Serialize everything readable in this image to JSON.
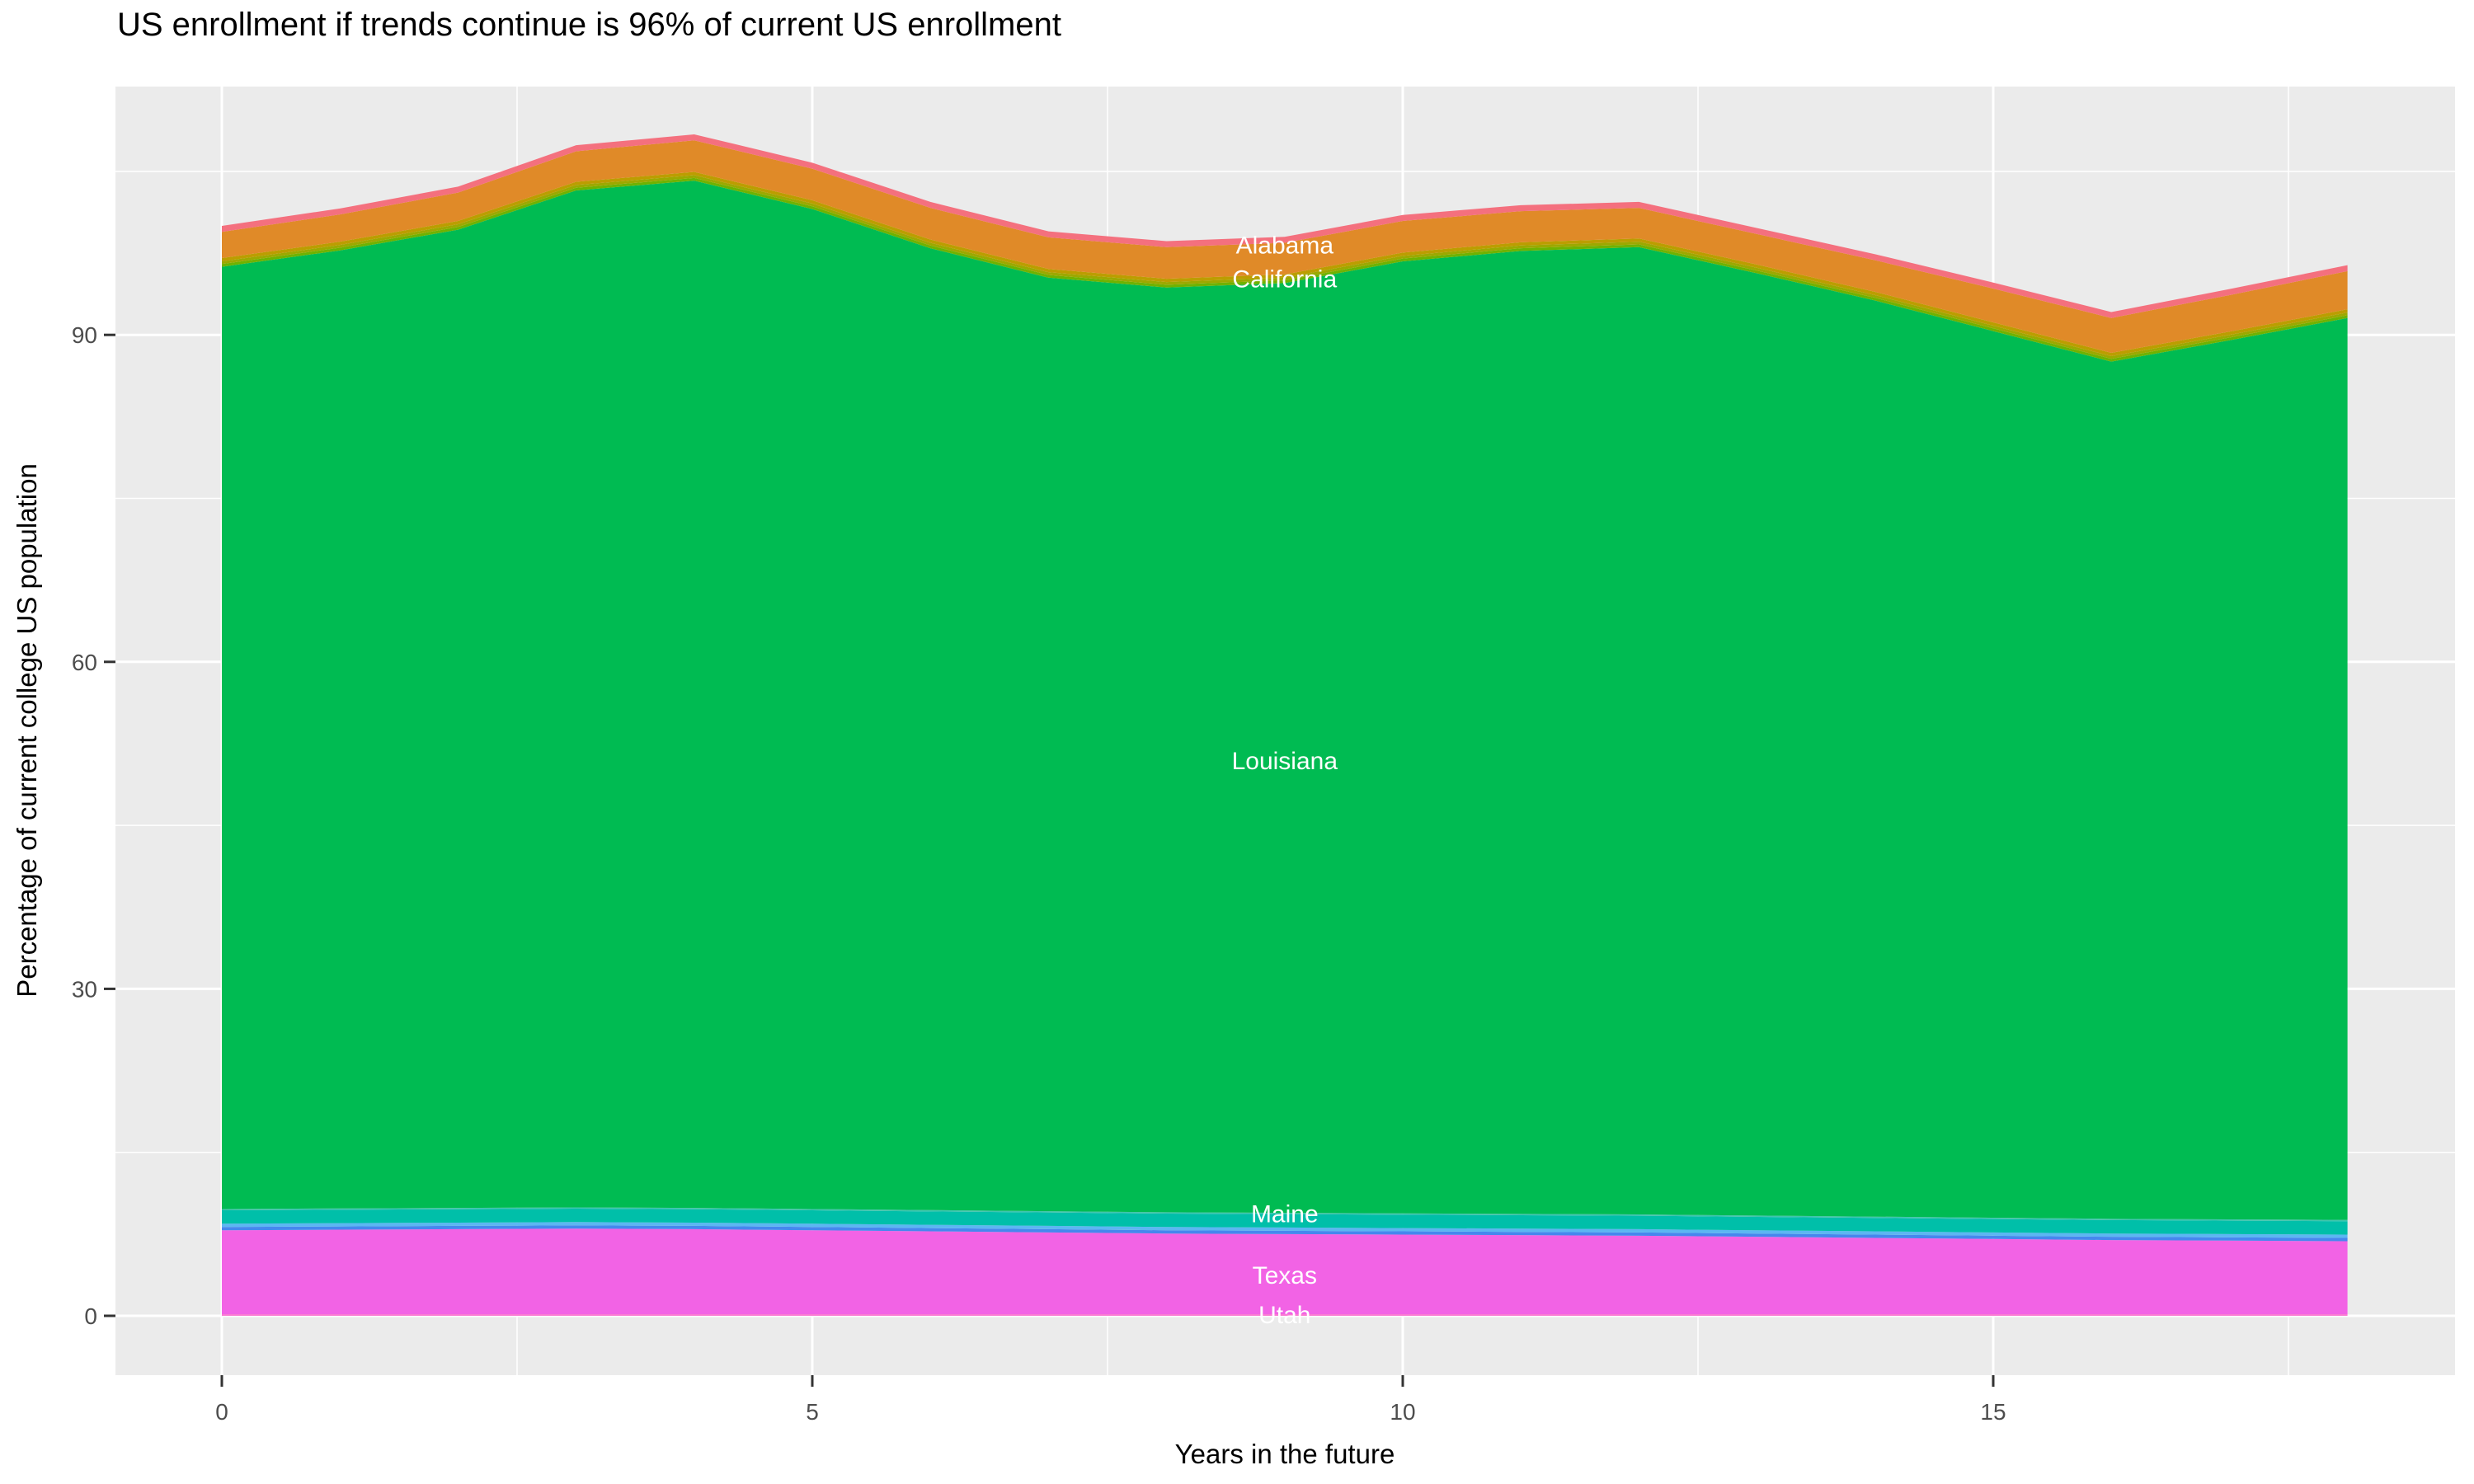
{
  "title": "US enrollment if trends continue is 96% of current US enrollment",
  "axes": {
    "x_label": "Years in the future",
    "y_label": "Percentage of current college US population",
    "x_ticks": [
      0,
      5,
      10,
      15
    ],
    "x_minor": [
      2.5,
      7.5,
      12.5,
      17.5
    ],
    "y_ticks": [
      0,
      30,
      60,
      90
    ],
    "y_minor": [
      15,
      45,
      75,
      105
    ],
    "x_range_shown": [
      -0.9,
      18.9
    ],
    "y_range_shown": [
      -5.5,
      113.0
    ]
  },
  "style_colors": {
    "background": "#FFFFFF",
    "panel_background": "#EBEBEB",
    "gridline": "#FFFFFF",
    "tick_mark": "#333333",
    "tick_label": "#4D4D4D",
    "title_text": "#000000",
    "area_label_text": "#FFFFFF"
  },
  "chart_data": {
    "type": "area",
    "stacked": true,
    "title": "US enrollment if trends continue is 96% of current US enrollment",
    "xlabel": "Years in the future",
    "ylabel": "Percentage of current college US population",
    "xlim": [
      0,
      18
    ],
    "ylim": [
      0,
      110
    ],
    "grid": true,
    "legend_position": "none",
    "x": [
      0,
      1,
      2,
      3,
      4,
      5,
      6,
      7,
      8,
      9,
      10,
      11,
      12,
      13,
      14,
      15,
      16,
      17,
      18
    ],
    "total_stack": [
      100.0,
      101.6,
      103.6,
      107.4,
      108.4,
      105.8,
      102.2,
      99.5,
      98.6,
      99.0,
      101.0,
      101.9,
      102.2,
      99.8,
      97.4,
      94.8,
      92.1,
      94.2,
      96.4
    ],
    "series": [
      {
        "name": "other-states-bottom-sliver",
        "display_label": "",
        "color": "#F97BD2",
        "values": 0.15
      },
      {
        "name": "Texas",
        "display_label": "Texas",
        "color": "#F263E5",
        "values": [
          7.7,
          7.75,
          7.8,
          7.85,
          7.8,
          7.7,
          7.6,
          7.5,
          7.4,
          7.35,
          7.3,
          7.25,
          7.2,
          7.1,
          7.0,
          6.9,
          6.8,
          6.75,
          6.7
        ]
      },
      {
        "name": "other-states-blue-dark",
        "display_label": "",
        "color": "#4687EE",
        "values": 0.3
      },
      {
        "name": "other-states-blue-light",
        "display_label": "",
        "color": "#5CB6F2",
        "values": 0.3
      },
      {
        "name": "Maine",
        "display_label": "Maine",
        "color": "#00BFA9",
        "values": 1.23
      },
      {
        "name": "maine-top-edge",
        "display_label": "",
        "color": "#3FC5AE",
        "values": 0.12
      },
      {
        "name": "Louisiana",
        "display_label": "Louisiana",
        "color": "#00BB52",
        "values": [
          86.45,
          87.9,
          89.75,
          93.3,
          94.25,
          91.75,
          88.25,
          85.65,
          84.85,
          85.3,
          87.35,
          88.35,
          88.75,
          86.45,
          84.05,
          81.35,
          78.65,
          80.65,
          82.75
        ]
      },
      {
        "name": "other-states-yellow-3",
        "display_label": "",
        "color": "#6FB200",
        "values": 0.25
      },
      {
        "name": "other-states-yellow-2",
        "display_label": "",
        "color": "#9CA800",
        "values": 0.25
      },
      {
        "name": "other-states-yellow-1",
        "display_label": "",
        "color": "#BC9D00",
        "values": 0.3
      },
      {
        "name": "California",
        "display_label": "California",
        "color": "#E08A28",
        "values": [
          2.4,
          2.5,
          2.6,
          2.8,
          2.9,
          2.9,
          2.9,
          2.9,
          2.9,
          2.9,
          2.9,
          2.85,
          2.8,
          2.8,
          2.9,
          3.1,
          3.2,
          3.35,
          3.5
        ]
      },
      {
        "name": "Alabama",
        "display_label": "Alabama",
        "color": "#F4707E",
        "values": 0.55
      }
    ],
    "area_labels": [
      {
        "text": "Alabama",
        "x": 9,
        "y": 98.3
      },
      {
        "text": "California",
        "x": 9,
        "y": 95.2
      },
      {
        "text": "Louisiana",
        "x": 9,
        "y": 51.0
      },
      {
        "text": "Maine",
        "x": 9,
        "y": 9.4
      },
      {
        "text": "Texas",
        "x": 9,
        "y": 3.8
      },
      {
        "text": "Utah",
        "x": 9,
        "y": 0.15
      }
    ]
  }
}
